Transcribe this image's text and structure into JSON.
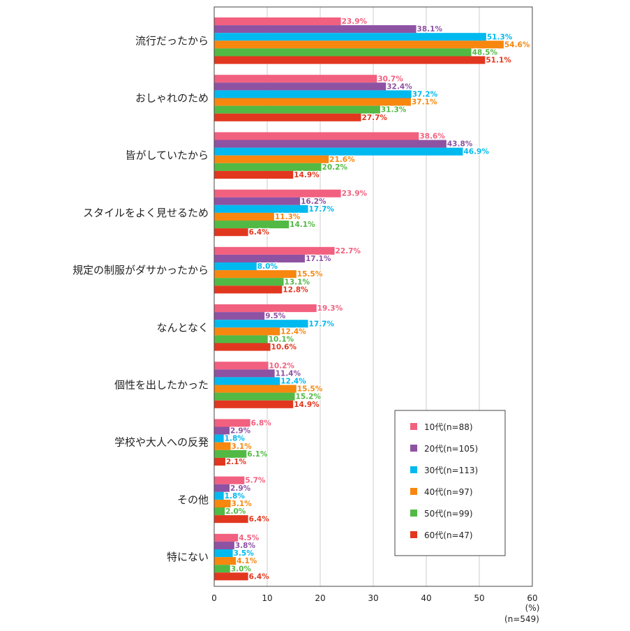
{
  "chart_data": {
    "type": "bar",
    "orientation": "horizontal",
    "categories": [
      "流行だったから",
      "おしゃれのため",
      "皆がしていたから",
      "スタイルをよく見せるため",
      "規定の制服がダサかったから",
      "なんとなく",
      "個性を出したかった",
      "学校や大人への反発",
      "その他",
      "特にない"
    ],
    "series": [
      {
        "name": "10代(n=88)",
        "color": "#f2607f",
        "values": [
          23.9,
          30.7,
          38.6,
          23.9,
          22.7,
          19.3,
          10.2,
          6.8,
          5.7,
          4.5
        ],
        "labels": [
          "23.9%",
          "30.7%",
          "38.6%",
          "23.9%",
          "22.7%",
          "19.3%",
          "10.2%",
          "6.8%",
          "5.7%",
          "4.5%"
        ]
      },
      {
        "name": "20代(n=105)",
        "color": "#8e52a3",
        "values": [
          38.1,
          32.4,
          43.8,
          16.2,
          17.1,
          9.5,
          11.4,
          2.9,
          2.9,
          3.8
        ],
        "labels": [
          "38.1%",
          "32.4%",
          "43.8%",
          "16.2%",
          "17.1%",
          "9.5%",
          "11.4%",
          "2.9%",
          "2.9%",
          "3.8%"
        ]
      },
      {
        "name": "30代(n=113)",
        "color": "#00b9ef",
        "values": [
          51.3,
          37.2,
          46.9,
          17.7,
          8.0,
          17.7,
          12.4,
          1.8,
          1.8,
          3.5
        ],
        "labels": [
          "51.3%",
          "37.2%",
          "46.9%",
          "17.7%",
          "8.0%",
          "17.7%",
          "12.4%",
          "1.8%",
          "1.8%",
          "3.5%"
        ]
      },
      {
        "name": "40代(n=97)",
        "color": "#f7870f",
        "values": [
          54.6,
          37.1,
          21.6,
          11.3,
          15.5,
          12.4,
          15.5,
          3.1,
          3.1,
          4.1
        ],
        "labels": [
          "54.6%",
          "37.1%",
          "21.6%",
          "11.3%",
          "15.5%",
          "12.4%",
          "15.5%",
          "3.1%",
          "3.1%",
          "4.1%"
        ]
      },
      {
        "name": "50代(n=99)",
        "color": "#52b944",
        "values": [
          48.5,
          31.3,
          20.2,
          14.1,
          13.1,
          10.1,
          15.2,
          6.1,
          2.0,
          3.0
        ],
        "labels": [
          "48.5%",
          "31.3%",
          "20.2%",
          "14.1%",
          "13.1%",
          "10.1%",
          "15.2%",
          "6.1%",
          "2.0%",
          "3.0%"
        ]
      },
      {
        "name": "60代(n=47)",
        "color": "#e2371f",
        "values": [
          51.1,
          27.7,
          14.9,
          6.4,
          12.8,
          10.6,
          14.9,
          2.1,
          6.4,
          6.4
        ],
        "labels": [
          "51.1%",
          "27.7%",
          "14.9%",
          "6.4%",
          "12.8%",
          "10.6%",
          "14.9%",
          "2.1%",
          "6.4%",
          "6.4%"
        ]
      }
    ],
    "xlim": [
      0,
      60
    ],
    "xticks": [
      0,
      10,
      20,
      30,
      40,
      50,
      60
    ],
    "xtick_labels": [
      "0",
      "10",
      "20",
      "30",
      "40",
      "50",
      "60"
    ],
    "unit_label": "(%)",
    "sample_label": "(n=549)",
    "grid": true,
    "legend_position": "bottom-right"
  }
}
